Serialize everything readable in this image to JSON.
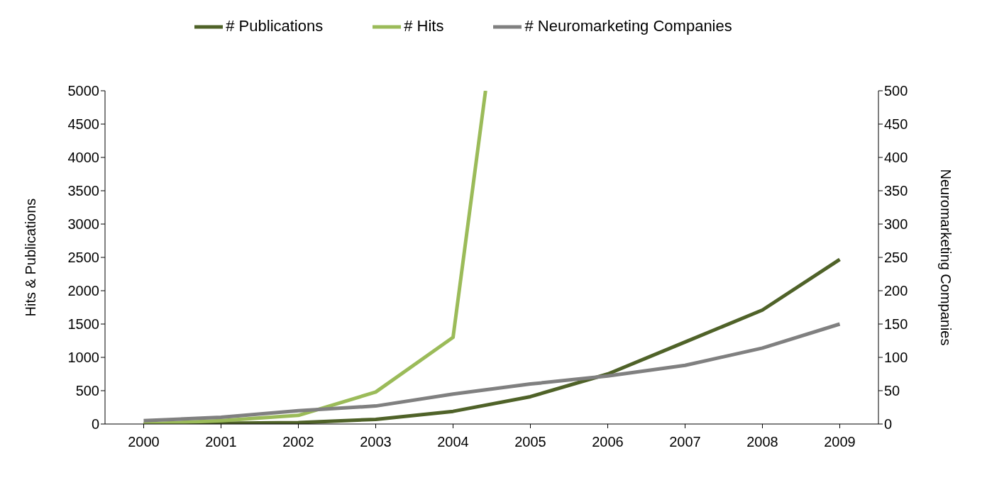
{
  "chart_data": {
    "type": "line",
    "xlabel": null,
    "ylabel": "Hits & Publications",
    "y2label": "Neuromarketing Companies",
    "x": [
      2000,
      2001,
      2002,
      2003,
      2004,
      2005,
      2006,
      2007,
      2008,
      2009
    ],
    "series": [
      {
        "name": "# Publications",
        "color": "#4f6228",
        "values": [
          0,
          10,
          20,
          70,
          190,
          410,
          750,
          1230,
          1710,
          2470
        ]
      },
      {
        "name": "# Hits",
        "color": "#9bbb59",
        "x": [
          2000,
          2001,
          2002,
          2003,
          2004,
          2004.42
        ],
        "values": [
          0,
          50,
          130,
          480,
          1300,
          5000
        ]
      },
      {
        "name": "# Neuromarketing Companies",
        "color": "#808080",
        "axis": "y2",
        "values": [
          5,
          10,
          20,
          27,
          45,
          60,
          72,
          88,
          114,
          150
        ]
      }
    ],
    "xlim": [
      1999.5,
      2009.5
    ],
    "xticks": [
      2000,
      2001,
      2002,
      2003,
      2004,
      2005,
      2006,
      2007,
      2008,
      2009
    ],
    "ylim": [
      0,
      5000
    ],
    "yticks": [
      0,
      500,
      1000,
      1500,
      2000,
      2500,
      3000,
      3500,
      4000,
      4500,
      5000
    ],
    "y2lim": [
      0,
      500
    ],
    "y2ticks": [
      0,
      50,
      100,
      150,
      200,
      250,
      300,
      350,
      400,
      450,
      500
    ],
    "grid": false,
    "legend": "top",
    "marker": "none",
    "line_style": "solid"
  }
}
